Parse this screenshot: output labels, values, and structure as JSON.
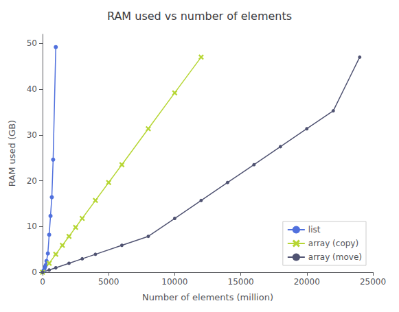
{
  "chart_data": {
    "type": "line",
    "title": "RAM used vs number of elements",
    "xlabel": "Number of elements (million)",
    "ylabel": "RAM used (GB)",
    "series": [
      {
        "name": "list",
        "marker": "circle",
        "x": [
          0,
          50,
          100,
          150,
          200,
          250,
          300,
          400,
          500,
          600,
          700,
          800,
          1000
        ],
        "values": [
          0,
          0.24,
          0.49,
          0.8,
          1.25,
          1.6,
          2.45,
          4.1,
          8.2,
          12.3,
          16.4,
          24.6,
          49.2
        ]
      },
      {
        "name": "array (copy)",
        "marker": "x",
        "x": [
          0,
          500,
          1000,
          1500,
          2000,
          2500,
          3000,
          4000,
          5000,
          6000,
          8000,
          10000,
          12000
        ],
        "values": [
          0,
          1.96,
          3.92,
          5.88,
          7.84,
          9.8,
          11.76,
          15.68,
          19.6,
          23.5,
          31.36,
          39.2,
          47.0
        ]
      },
      {
        "name": "array (move)",
        "marker": "circle",
        "x": [
          0,
          500,
          1000,
          2000,
          3000,
          4000,
          6000,
          8000,
          10000,
          12000,
          14000,
          16000,
          18000,
          20000,
          22000,
          24000
        ],
        "values": [
          0,
          0.49,
          0.98,
          1.96,
          2.94,
          3.92,
          5.88,
          7.84,
          11.76,
          15.68,
          19.6,
          23.5,
          27.44,
          31.36,
          35.28,
          47.0
        ]
      }
    ],
    "xlim": [
      0,
      25000
    ],
    "xticks": [
      0,
      5000,
      10000,
      15000,
      20000,
      25000
    ],
    "ylim": [
      0,
      52
    ],
    "yticks": [
      0,
      10,
      20,
      30,
      40,
      50
    ],
    "grid": false,
    "legend": "lower right"
  }
}
